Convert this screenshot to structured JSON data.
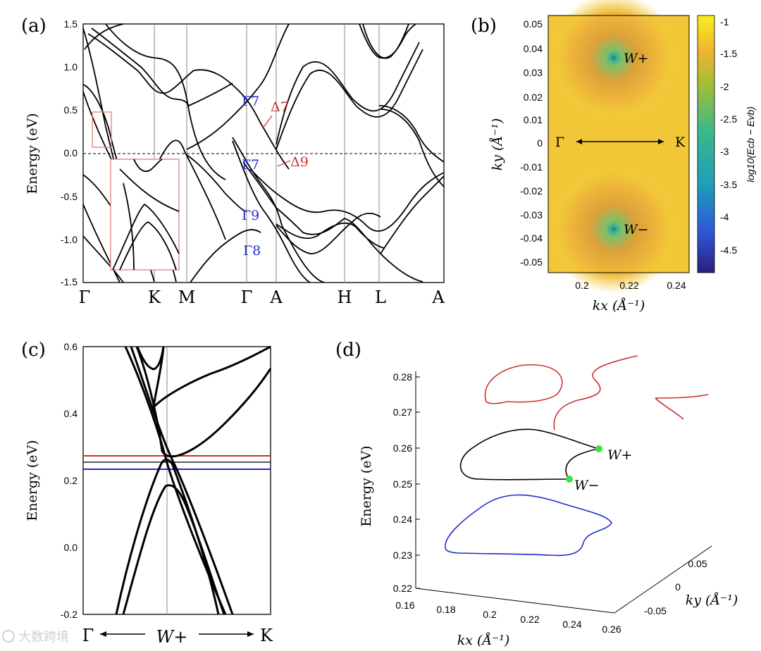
{
  "chart_data": [
    {
      "panel": "(a)",
      "type": "line",
      "ylabel": "Energy (eV)",
      "ylim": [
        -1.5,
        1.5
      ],
      "yticks": [
        "1.5",
        "1.0",
        "0.5",
        "0.0",
        "-0.5",
        "-1.0",
        "-1.5"
      ],
      "kpoints": [
        "Γ",
        "K",
        "M",
        "Γ",
        "A",
        "H",
        "L",
        "A"
      ],
      "labels_blue": [
        "Γ7",
        "Γ7",
        "Γ9",
        "Γ8"
      ],
      "labels_red": [
        "Δ7",
        "Δ9"
      ]
    },
    {
      "panel": "(b)",
      "type": "heatmap",
      "xlabel": "kx (Å⁻¹)",
      "ylabel": "ky (Å⁻¹)",
      "xticks": [
        "0.2",
        "0.22",
        "0.24"
      ],
      "yticks": [
        "0.05",
        "0.04",
        "0.03",
        "0.02",
        "0.01",
        "0",
        "-0.01",
        "-0.02",
        "-0.03",
        "-0.04",
        "-0.05"
      ],
      "colorbar_label": "log10(Ecb − Evb)",
      "colorbar_ticks": [
        "-1",
        "-1.5",
        "-2",
        "-2.5",
        "-3",
        "-3.5",
        "-4",
        "-4.5"
      ],
      "annotations": [
        "W+",
        "W−",
        "Γ",
        "K"
      ],
      "weyl_points": [
        {
          "name": "W+",
          "kx": 0.214,
          "ky": 0.036
        },
        {
          "name": "W−",
          "kx": 0.214,
          "ky": -0.036
        }
      ]
    },
    {
      "panel": "(c)",
      "type": "line",
      "ylabel": "Energy (eV)",
      "ylim": [
        -0.2,
        0.6
      ],
      "yticks": [
        "0.6",
        "0.4",
        "0.2",
        "0.0",
        "-0.2"
      ],
      "xlabels": [
        "Γ",
        "W+",
        "K"
      ],
      "levels": [
        {
          "color": "red",
          "energy": 0.272
        },
        {
          "color": "black",
          "energy": 0.262
        },
        {
          "color": "blue",
          "energy": 0.232
        }
      ]
    },
    {
      "panel": "(d)",
      "type": "line",
      "ylabel": "Energy (eV)",
      "zticks": [
        "0.28",
        "0.27",
        "0.26",
        "0.25",
        "0.24",
        "0.23",
        "0.22"
      ],
      "xlabel": "kx (Å⁻¹)",
      "xticks": [
        "0.16",
        "0.18",
        "0.2",
        "0.22",
        "0.24",
        "0.26"
      ],
      "ylabel3d": "ky (Å⁻¹)",
      "kyticks": [
        "0.05",
        "0",
        "-0.05"
      ],
      "annotations": [
        "W+",
        "W−"
      ]
    }
  ],
  "watermark": "大数跨境"
}
